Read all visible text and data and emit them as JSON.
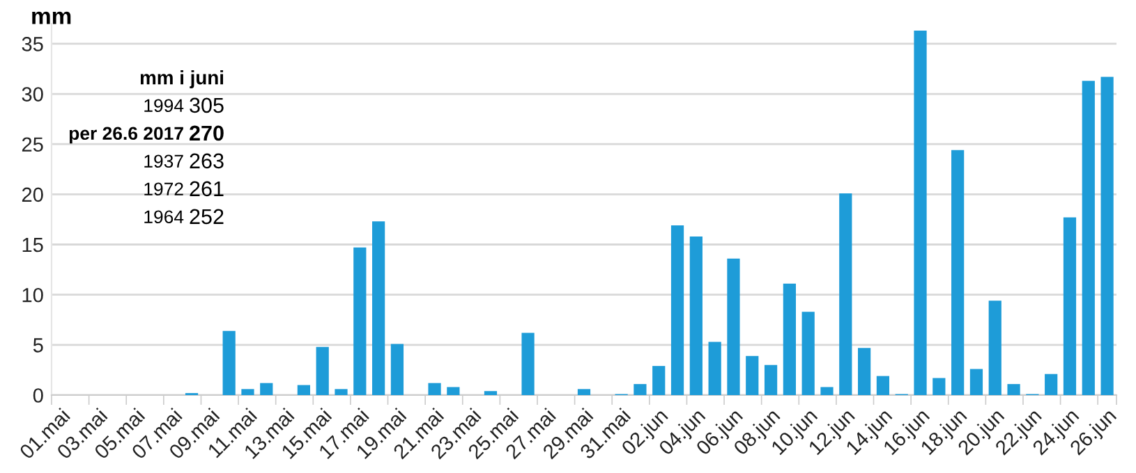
{
  "chart_data": {
    "type": "bar",
    "ylabel": "mm",
    "categories": [
      "01.mai",
      null,
      "03.mai",
      null,
      "05.mai",
      null,
      "07.mai",
      null,
      "09.mai",
      null,
      "11.mai",
      null,
      "13.mai",
      null,
      "15.mai",
      null,
      "17.mai",
      null,
      "19.mai",
      null,
      "21.mai",
      null,
      "23.mai",
      null,
      "25.mai",
      null,
      "27.mai",
      null,
      "29.mai",
      null,
      "31.mai",
      null,
      "02.jun",
      null,
      "04.jun",
      null,
      "06.jun",
      null,
      "08.jun",
      null,
      "10.jun",
      null,
      "12.jun",
      null,
      "14.jun",
      null,
      "16.jun",
      null,
      "18.jun",
      null,
      "20.jun",
      null,
      "22.jun",
      null,
      "24.jun",
      null,
      "26.jun"
    ],
    "values": [
      0,
      0,
      0,
      0,
      0,
      0,
      0,
      0.2,
      0,
      6.4,
      0.6,
      1.2,
      0,
      1.0,
      4.8,
      0.6,
      14.7,
      17.3,
      5.1,
      0,
      1.2,
      0.8,
      0,
      0.4,
      0,
      6.2,
      0,
      0,
      0.6,
      0,
      0.1,
      1.1,
      2.9,
      16.9,
      15.8,
      5.3,
      13.6,
      3.9,
      3.0,
      11.1,
      8.3,
      0.8,
      20.1,
      4.7,
      1.9,
      0.1,
      36.3,
      1.7,
      24.4,
      2.6,
      9.4,
      1.1,
      0.1,
      2.1,
      17.7,
      31.3,
      31.7
    ],
    "color": "#1e9cd8",
    "ylim": [
      0,
      37
    ],
    "yticks": [
      0,
      5,
      10,
      15,
      20,
      25,
      30,
      35
    ],
    "grid": "y",
    "legend": false,
    "annotations": [
      "mm i juni",
      "1994",
      "305",
      "per 26.6 2017",
      "270",
      "1937",
      "263",
      "1972",
      "261",
      "1964",
      "252"
    ]
  }
}
